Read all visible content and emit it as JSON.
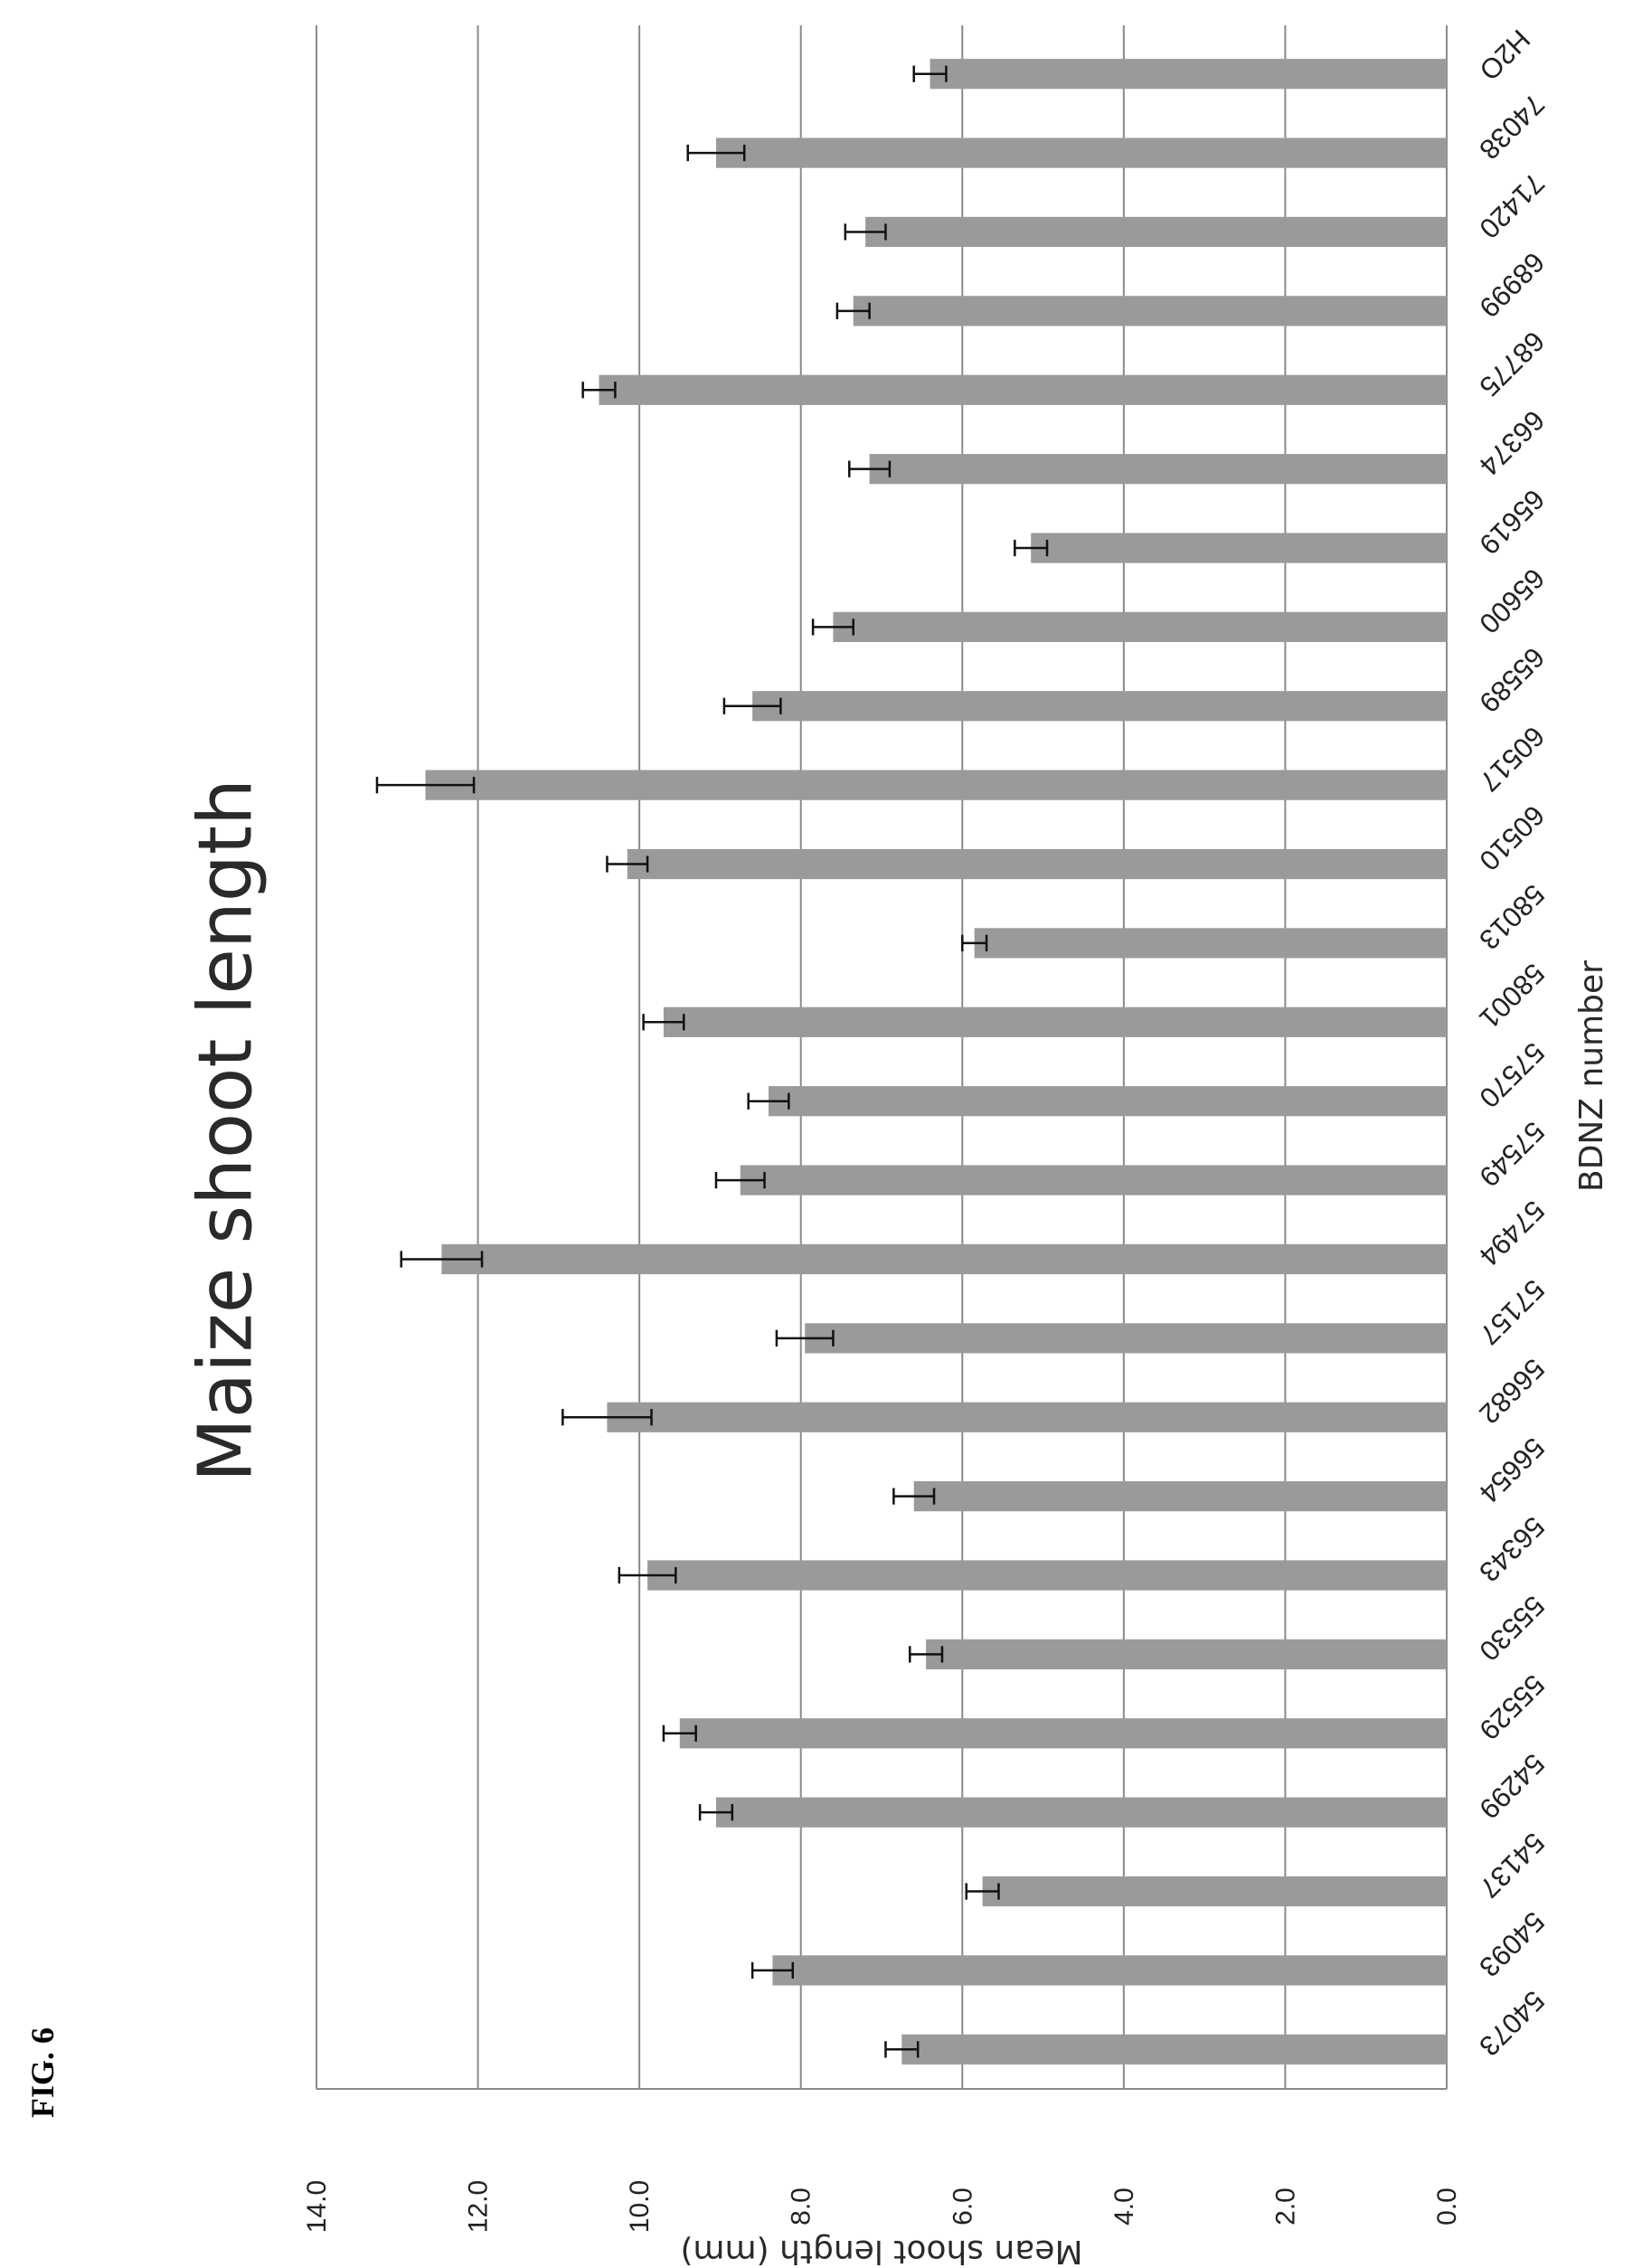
{
  "figure_label": "FIG. 6",
  "chart_data": {
    "type": "bar",
    "title": "Maize shoot length",
    "xlabel": "BDNZ number",
    "ylabel": "Mean shoot length (mm)",
    "ylim": [
      0,
      14
    ],
    "yticks": [
      "0.0",
      "2.0",
      "4.0",
      "6.0",
      "8.0",
      "10.0",
      "12.0",
      "14.0"
    ],
    "grid": true,
    "orientation": "rotated 90° counter-clockwise on the page",
    "bar_color": "#9a9a9a",
    "categories": [
      "54073",
      "54093",
      "54137",
      "54299",
      "55529",
      "55530",
      "56343",
      "56654",
      "56682",
      "57157",
      "57494",
      "57549",
      "57570",
      "58001",
      "58013",
      "60510",
      "60517",
      "65589",
      "65600",
      "65619",
      "66374",
      "68775",
      "68999",
      "71420",
      "74038",
      "H2O"
    ],
    "values": [
      6.75,
      8.35,
      5.75,
      9.05,
      9.5,
      6.45,
      9.9,
      6.6,
      10.4,
      7.95,
      12.45,
      8.75,
      8.4,
      9.7,
      5.85,
      10.15,
      12.65,
      8.6,
      7.6,
      5.15,
      7.15,
      10.5,
      7.35,
      7.2,
      9.05,
      6.4
    ],
    "errors": [
      0.2,
      0.25,
      0.2,
      0.2,
      0.2,
      0.2,
      0.35,
      0.25,
      0.55,
      0.35,
      0.5,
      0.3,
      0.25,
      0.25,
      0.15,
      0.25,
      0.6,
      0.35,
      0.25,
      0.2,
      0.25,
      0.2,
      0.2,
      0.25,
      0.35,
      0.2
    ]
  }
}
